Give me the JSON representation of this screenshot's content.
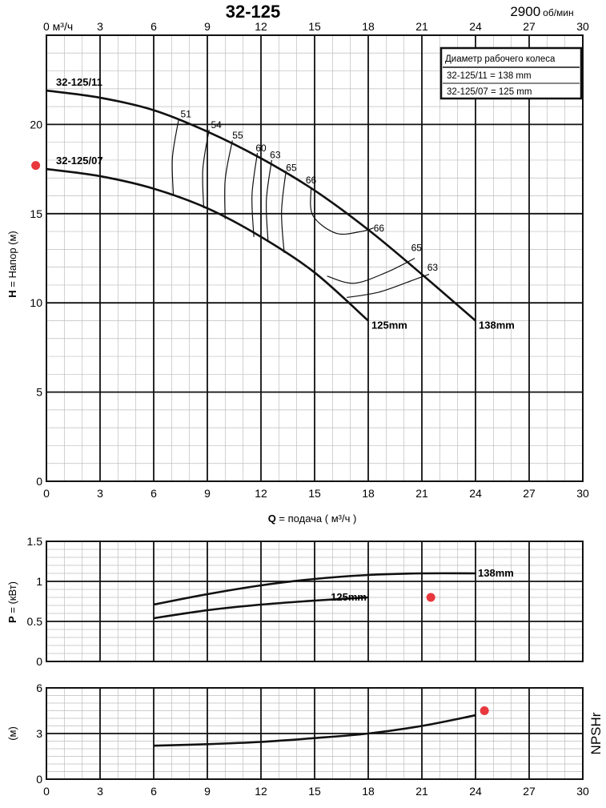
{
  "header": {
    "title": "32-125",
    "speed": "2900",
    "speed_unit": "об/мин"
  },
  "legend": {
    "title": "Диаметр рабочего колеса",
    "rows": [
      "32-125/11 = 138 mm",
      "32-125/07 = 125 mm"
    ]
  },
  "colors": {
    "curve": "#111111",
    "grid_major": "#111111",
    "grid_minor": "#bdbdbd",
    "marker": "#e8383d"
  },
  "chart_data": [
    {
      "type": "line",
      "name": "head",
      "top_axis_unit": "0  м³/ч",
      "xlabel_bold": "Q",
      "xlabel": " = подача ( м³/ч )",
      "ylabel_bold": "H",
      "ylabel": " = Напор (м)",
      "xlim": [
        0,
        30
      ],
      "ylim": [
        0,
        25
      ],
      "x_ticks": [
        0,
        3,
        6,
        9,
        12,
        15,
        18,
        21,
        24,
        27,
        30
      ],
      "top_x_ticks": [
        3,
        6,
        9,
        12,
        15,
        18,
        21,
        24,
        27,
        30
      ],
      "y_ticks": [
        0,
        5,
        10,
        15,
        20
      ],
      "series": [
        {
          "name": "32-125/11",
          "end_label": "138mm",
          "points": [
            [
              0,
              21.9
            ],
            [
              3,
              21.5
            ],
            [
              6,
              20.8
            ],
            [
              9,
              19.6
            ],
            [
              12,
              18.1
            ],
            [
              15,
              16.3
            ],
            [
              18,
              14.1
            ],
            [
              21,
              11.6
            ],
            [
              24,
              9.0
            ]
          ]
        },
        {
          "name": "32-125/07",
          "end_label": "125mm",
          "points": [
            [
              0,
              17.5
            ],
            [
              3,
              17.1
            ],
            [
              6,
              16.4
            ],
            [
              9,
              15.3
            ],
            [
              12,
              13.7
            ],
            [
              15,
              11.7
            ],
            [
              18,
              9.0
            ]
          ]
        }
      ],
      "efficiency_labels": [
        {
          "text": "51",
          "x": 7.8,
          "y": 20.4
        },
        {
          "text": "54",
          "x": 9.5,
          "y": 19.8
        },
        {
          "text": "55",
          "x": 10.7,
          "y": 19.2
        },
        {
          "text": "60",
          "x": 12.0,
          "y": 18.5
        },
        {
          "text": "63",
          "x": 12.8,
          "y": 18.1
        },
        {
          "text": "65",
          "x": 13.7,
          "y": 17.4
        },
        {
          "text": "66",
          "x": 14.8,
          "y": 16.7
        },
        {
          "text": "66",
          "x": 18.6,
          "y": 14.0
        },
        {
          "text": "65",
          "x": 20.7,
          "y": 12.9
        },
        {
          "text": "63",
          "x": 21.6,
          "y": 11.8
        }
      ],
      "marker": {
        "x": -0.6,
        "y": 17.7
      }
    },
    {
      "type": "line",
      "name": "power",
      "ylabel_bold": "P",
      "ylabel": " = (кВт)",
      "xlim": [
        0,
        30
      ],
      "ylim": [
        0,
        1.5
      ],
      "y_ticks": [
        0,
        0.5,
        1,
        1.5
      ],
      "y_tick_labels": [
        "0",
        "0.5",
        "1",
        "1.5"
      ],
      "series": [
        {
          "name": "138mm",
          "points": [
            [
              6,
              0.71
            ],
            [
              9,
              0.84
            ],
            [
              12,
              0.95
            ],
            [
              15,
              1.03
            ],
            [
              18,
              1.08
            ],
            [
              21,
              1.1
            ],
            [
              24,
              1.1
            ]
          ]
        },
        {
          "name": "125mm",
          "points": [
            [
              6,
              0.54
            ],
            [
              9,
              0.64
            ],
            [
              12,
              0.71
            ],
            [
              15,
              0.76
            ],
            [
              18,
              0.8
            ]
          ]
        }
      ],
      "marker": {
        "x": 21.5,
        "y": 0.8
      }
    },
    {
      "type": "line",
      "name": "npsh",
      "ylabel": "(м)",
      "side_label": "NPSHr",
      "xlim": [
        0,
        30
      ],
      "ylim": [
        0,
        6
      ],
      "x_ticks": [
        0,
        3,
        6,
        9,
        12,
        15,
        18,
        21,
        24,
        27,
        30
      ],
      "y_ticks": [
        0,
        3,
        6
      ],
      "series": [
        {
          "name": "NPSHr",
          "points": [
            [
              6,
              2.2
            ],
            [
              9,
              2.3
            ],
            [
              12,
              2.45
            ],
            [
              15,
              2.7
            ],
            [
              18,
              3.0
            ],
            [
              21,
              3.5
            ],
            [
              24,
              4.2
            ]
          ]
        }
      ],
      "marker": {
        "x": 24.5,
        "y": 4.5
      }
    }
  ]
}
